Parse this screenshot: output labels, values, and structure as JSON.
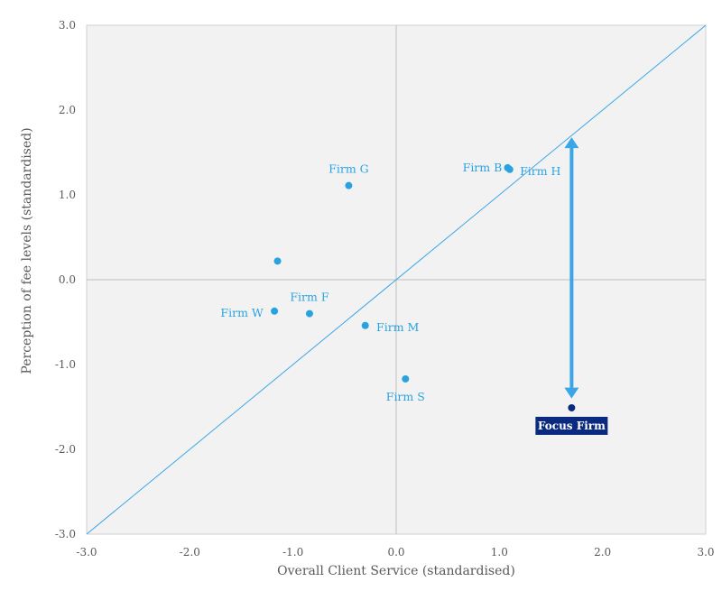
{
  "chart_data": {
    "type": "scatter",
    "title": "",
    "xlabel": "Overall Client Service (standardised)",
    "ylabel": "Perception of fee levels (standardised)",
    "xlim": [
      -3.0,
      3.0
    ],
    "ylim": [
      -3.0,
      3.0
    ],
    "x_ticks": [
      "-3.0",
      "-2.0",
      "-1.0",
      "0.0",
      "1.0",
      "2.0",
      "3.0"
    ],
    "y_ticks": [
      "-3.0",
      "-2.0",
      "-1.0",
      "0.0",
      "1.0",
      "2.0",
      "3.0"
    ],
    "grid": false,
    "reference_line": "y = x",
    "colors": {
      "plot_background": "#f2f2f2",
      "points": "#29a3e0",
      "focus_point": "#0a2a80",
      "focus_label_bg": "#0a2a80",
      "arrow": "#3aa6e8",
      "diagonal": "#3aa6e8",
      "zero_lines": "#bfbfbf"
    },
    "points": [
      {
        "label": "Firm G",
        "x": -0.46,
        "y": 1.11
      },
      {
        "label": "Firm B",
        "x": 1.08,
        "y": 1.32
      },
      {
        "label": "Firm H",
        "x": 1.1,
        "y": 1.3
      },
      {
        "label": "",
        "x": -1.15,
        "y": 0.22
      },
      {
        "label": "Firm W",
        "x": -1.18,
        "y": -0.37
      },
      {
        "label": "Firm F",
        "x": -0.84,
        "y": -0.4
      },
      {
        "label": "Firm M",
        "x": -0.3,
        "y": -0.54
      },
      {
        "label": "Firm S",
        "x": 0.09,
        "y": -1.17
      },
      {
        "label": "Focus Firm",
        "x": 1.7,
        "y": -1.51,
        "highlight": true
      }
    ],
    "annotation": {
      "type": "double-arrow",
      "x": 1.7,
      "y_from": -1.4,
      "y_to": 1.68
    }
  }
}
